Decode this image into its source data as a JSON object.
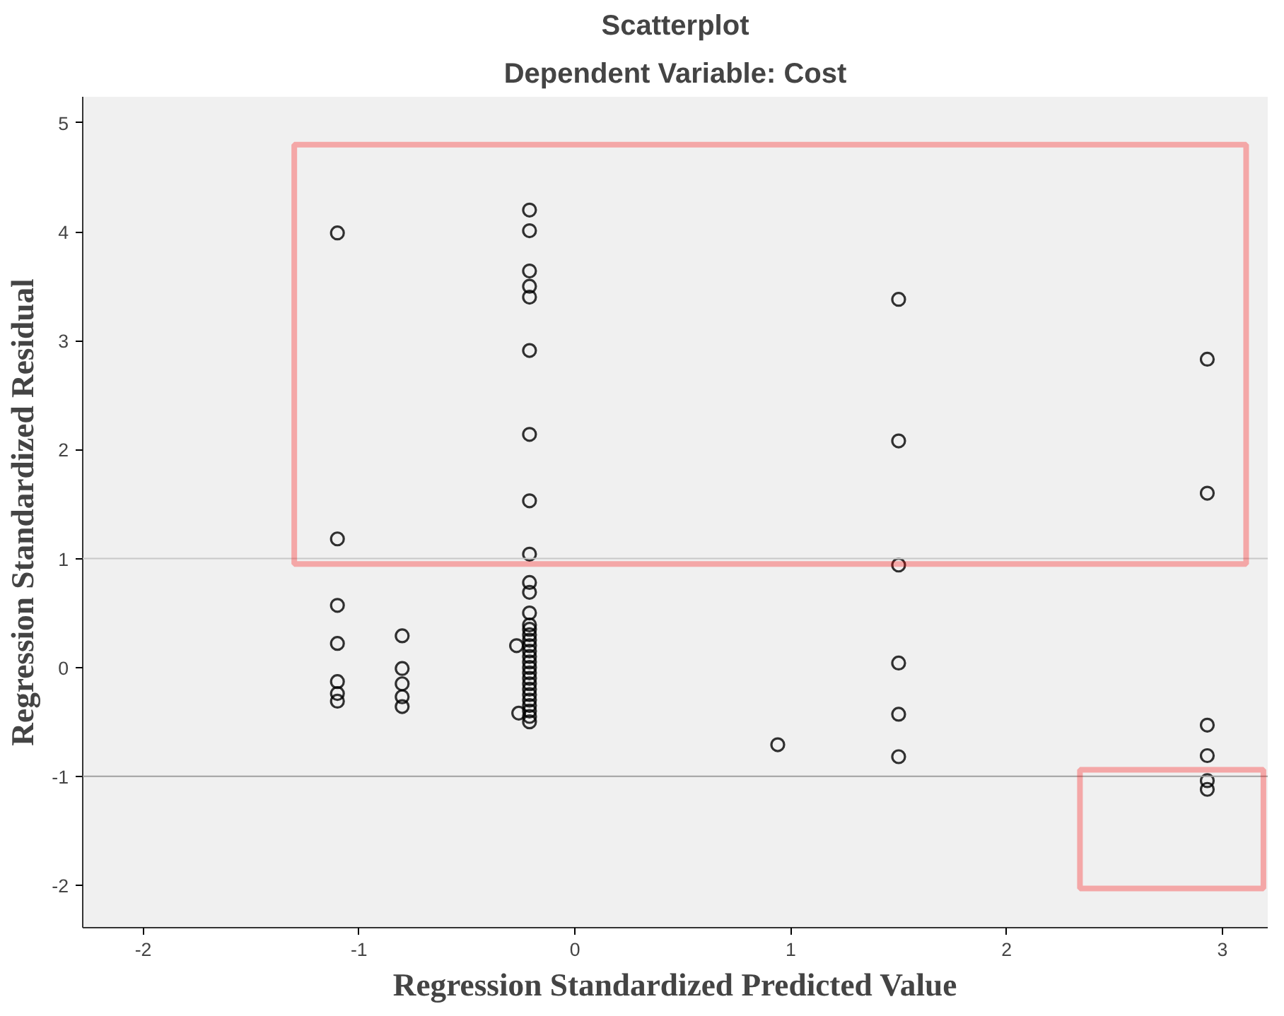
{
  "chart_data": {
    "type": "scatter",
    "title": "Scatterplot",
    "subtitle": "Dependent Variable: Cost",
    "xlabel": "Regression Standardized Predicted Value",
    "ylabel": "Regression Standardized Residual",
    "xlim": [
      -2.28,
      3.21
    ],
    "ylim": [
      -2.39,
      5.24
    ],
    "xticks": [
      -2,
      -1,
      0,
      1,
      2,
      3
    ],
    "yticks": [
      -2,
      -1,
      0,
      1,
      2,
      3,
      4,
      5
    ],
    "grid": false,
    "marker": "circle",
    "series": [
      {
        "color": "#000000",
        "x": [
          -1.1,
          -1.1,
          -1.1,
          -1.1,
          -1.1,
          -1.1,
          -1.1,
          -0.8,
          -0.8,
          -0.8,
          -0.8,
          -0.8,
          -0.21,
          -0.21,
          -0.21,
          -0.21,
          -0.21,
          -0.21,
          -0.21,
          -0.21,
          -0.21,
          -0.21,
          -0.21,
          -0.21,
          -0.21,
          -0.21,
          -0.21,
          -0.21,
          -0.21,
          -0.21,
          -0.21,
          -0.21,
          -0.21,
          -0.21,
          -0.21,
          -0.21,
          -0.21,
          -0.21,
          -0.21,
          -0.21,
          -0.21,
          -0.21,
          -0.21,
          -0.27,
          -0.26,
          0.94,
          1.5,
          1.5,
          1.5,
          1.5,
          1.5,
          1.5,
          2.93,
          2.93,
          2.93,
          2.93,
          2.93,
          2.93
        ],
        "values": [
          3.99,
          1.18,
          0.57,
          0.22,
          -0.13,
          -0.24,
          -0.31,
          0.29,
          -0.01,
          -0.15,
          -0.27,
          -0.36,
          4.2,
          4.01,
          3.64,
          3.5,
          3.4,
          2.91,
          2.14,
          1.53,
          1.04,
          0.78,
          0.69,
          0.5,
          0.39,
          0.3,
          0.2,
          0.1,
          0.0,
          -0.1,
          -0.2,
          -0.3,
          -0.35,
          -0.4,
          -0.45,
          -0.5,
          0.35,
          0.25,
          0.15,
          0.05,
          -0.05,
          -0.15,
          -0.25,
          0.2,
          -0.42,
          -0.71,
          3.38,
          2.08,
          0.94,
          0.04,
          -0.43,
          -0.82,
          2.83,
          1.6,
          -0.53,
          -0.81,
          -1.04,
          -1.12
        ]
      }
    ],
    "ref_lines": [
      {
        "axis": "y",
        "value": 1,
        "color": "#c8c8c8"
      },
      {
        "axis": "y",
        "value": -1,
        "color": "#a0a0a0"
      }
    ]
  }
}
